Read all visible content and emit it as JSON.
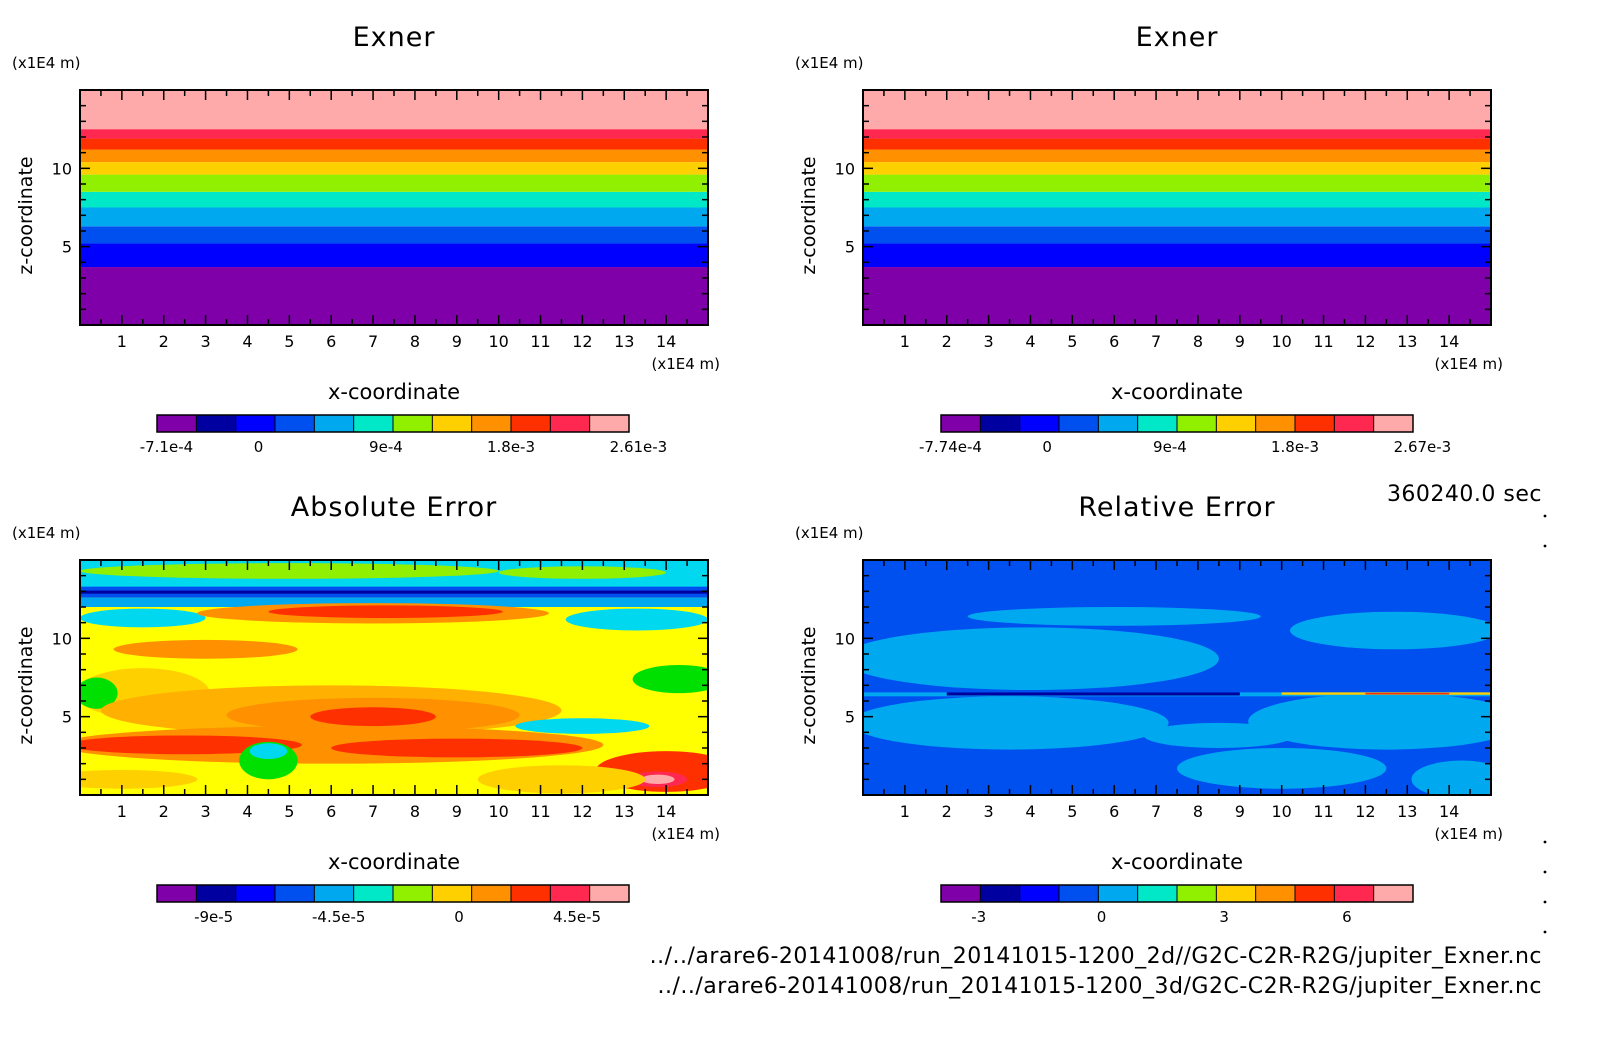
{
  "time_label": "360240.0 sec",
  "footer": {
    "line1": "../../arare6-20141008/run_20141015-1200_2d//G2C-C2R-R2G/jupiter_Exner.nc",
    "line2": "../../arare6-20141008/run_20141015-1200_3d/G2C-C2R-R2G/jupiter_Exner.nc"
  },
  "chart_data": [
    {
      "type": "heatmap",
      "title": "Exner",
      "xlabel": "x-coordinate",
      "ylabel": "z-coordinate",
      "x_unit": "(x1E4 m)",
      "y_unit": "(x1E4 m)",
      "xlim": [
        0,
        15
      ],
      "ylim": [
        0,
        15
      ],
      "x_ticks": [
        "1",
        "2",
        "3",
        "4",
        "5",
        "6",
        "7",
        "8",
        "9",
        "10",
        "11",
        "12",
        "13",
        "14"
      ],
      "y_ticks": [
        "5",
        "10"
      ],
      "pattern": "horizontal-bands",
      "band_tops": [
        3.7,
        5.2,
        6.3,
        7.5,
        8.5,
        9.6,
        10.4,
        11.2,
        11.9,
        12.5,
        15
      ],
      "colorbar": {
        "labels": [
          "-7.1e-4",
          "0",
          "9e-4",
          "1.8e-3",
          "2.61e-3"
        ]
      }
    },
    {
      "type": "heatmap",
      "title": "Exner",
      "xlabel": "x-coordinate",
      "ylabel": "z-coordinate",
      "x_unit": "(x1E4 m)",
      "y_unit": "(x1E4 m)",
      "xlim": [
        0,
        15
      ],
      "ylim": [
        0,
        15
      ],
      "x_ticks": [
        "1",
        "2",
        "3",
        "4",
        "5",
        "6",
        "7",
        "8",
        "9",
        "10",
        "11",
        "12",
        "13",
        "14"
      ],
      "y_ticks": [
        "5",
        "10"
      ],
      "pattern": "horizontal-bands",
      "band_tops": [
        3.7,
        5.2,
        6.3,
        7.5,
        8.5,
        9.6,
        10.4,
        11.2,
        11.9,
        12.5,
        15
      ],
      "colorbar": {
        "labels": [
          "-7.74e-4",
          "0",
          "9e-4",
          "1.8e-3",
          "2.67e-3"
        ]
      }
    },
    {
      "type": "heatmap",
      "title": "Absolute Error",
      "xlabel": "x-coordinate",
      "ylabel": "z-coordinate",
      "x_unit": "(x1E4 m)",
      "y_unit": "(x1E4 m)",
      "xlim": [
        0,
        15
      ],
      "ylim": [
        0,
        15
      ],
      "x_ticks": [
        "1",
        "2",
        "3",
        "4",
        "5",
        "6",
        "7",
        "8",
        "9",
        "10",
        "11",
        "12",
        "13",
        "14"
      ],
      "y_ticks": [
        "5",
        "10"
      ],
      "pattern": "irregular",
      "colorbar": {
        "labels": [
          "-9e-5",
          "-4.5e-5",
          "0",
          "4.5e-5"
        ]
      }
    },
    {
      "type": "heatmap",
      "title": "Relative Error",
      "xlabel": "x-coordinate",
      "ylabel": "z-coordinate",
      "x_unit": "(x1E4 m)",
      "y_unit": "(x1E4 m)",
      "xlim": [
        0,
        15
      ],
      "ylim": [
        0,
        15
      ],
      "x_ticks": [
        "1",
        "2",
        "3",
        "4",
        "5",
        "6",
        "7",
        "8",
        "9",
        "10",
        "11",
        "12",
        "13",
        "14"
      ],
      "y_ticks": [
        "5",
        "10"
      ],
      "pattern": "irregular",
      "colorbar": {
        "labels": [
          "-3",
          "0",
          "3",
          "6"
        ]
      }
    }
  ],
  "palette": [
    "#7f00a8",
    "#0000a0",
    "#0000ff",
    "#0050f0",
    "#00a8f0",
    "#00e8c8",
    "#90f000",
    "#ffd000",
    "#ff9000",
    "#ff3000",
    "#ff2850",
    "#ffaaaa"
  ]
}
